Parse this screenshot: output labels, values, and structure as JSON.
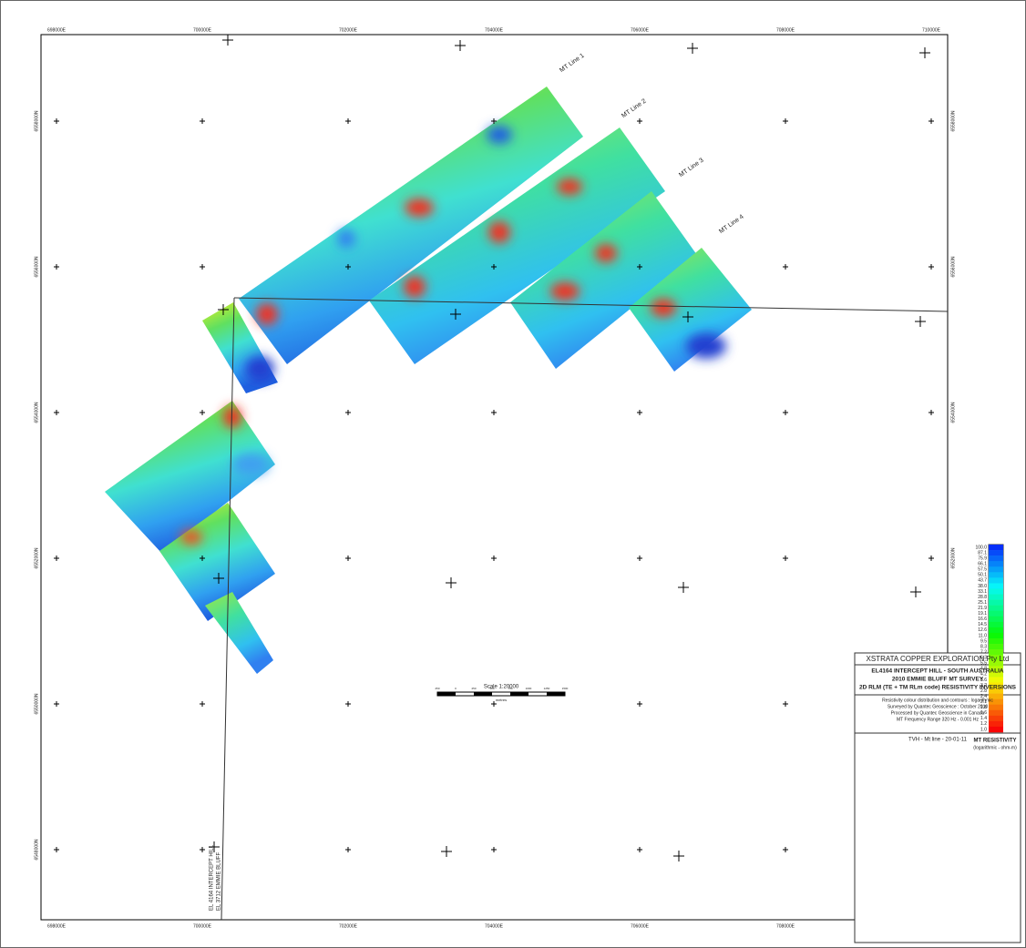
{
  "eastings_top": [
    "698000E",
    "700000E",
    "702000E",
    "704000E",
    "706000E",
    "708000E",
    "710000E"
  ],
  "eastings_bottom": [
    "698000E",
    "700000E",
    "702000E",
    "704000E",
    "706000E",
    "708000E",
    "710000E"
  ],
  "northings_left": [
    "6558000N",
    "6556000N",
    "6554000N",
    "6552000N",
    "6550000N",
    "6548000N"
  ],
  "northings_right": [
    "6558000N",
    "6556000N",
    "6554000N",
    "6552000N",
    "6550000N",
    "6548000N"
  ],
  "survey_lines": [
    "MT Line 1",
    "MT Line 2",
    "MT Line 3",
    "MT Line 4"
  ],
  "boundary_labels": [
    "EL 4164 INTERCEPT HILL",
    "EL 3712 EMMIE BLUFF"
  ],
  "legend": {
    "values": [
      "100.0",
      "87.1",
      "75.9",
      "66.1",
      "57.5",
      "50.1",
      "43.7",
      "38.0",
      "33.1",
      "28.8",
      "25.1",
      "21.9",
      "19.1",
      "16.6",
      "14.5",
      "12.6",
      "11.0",
      "9.5",
      "8.3",
      "7.2",
      "6.3",
      "5.5",
      "4.8",
      "4.2",
      "3.6",
      "3.2",
      "2.8",
      "2.4",
      "2.1",
      "1.8",
      "1.6",
      "1.4",
      "1.2",
      "1.0"
    ],
    "title": "MT RESISTIVITY",
    "subtitle": "(logarithmic - ohm-m)"
  },
  "scale": {
    "title": "Scale 1:20000",
    "ticks": [
      "250",
      "0",
      "250",
      "500",
      "750",
      "1000",
      "1250",
      "1500"
    ],
    "unit": "metres"
  },
  "title_block": {
    "company": "XSTRATA COPPER EXPLORATION Pty Ltd",
    "heading": [
      "EL4164 INTERCEPT HILL - SOUTH AUSTRALIA",
      "2010 EMMIE BLUFF MT SURVEY",
      "2D RLM (TE + TM RLm code) RESISTIVITY INVERSIONS"
    ],
    "notes": [
      "Resistivity colour distribution and contours : logarithmic",
      "Surveyed by Quantec Geoscience : October 2010",
      "Processed by Quantec Geoscience in Canada",
      "MT Frequency Range 320 Hz - 0.001 Hz"
    ],
    "footer": "TVH - Mt line - 20-01-11"
  }
}
